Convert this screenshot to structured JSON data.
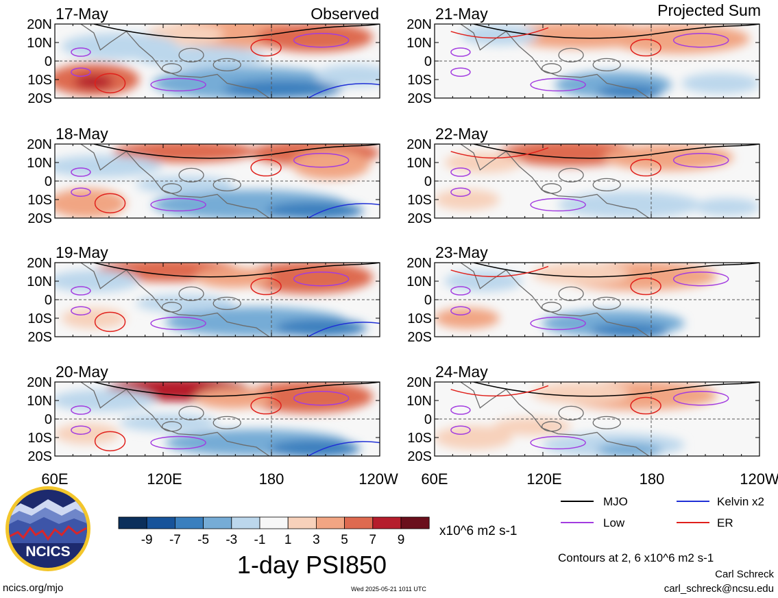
{
  "headers": {
    "left": "Observed",
    "right": "Projected Sum"
  },
  "chart_data": {
    "type": "heatmap",
    "title": "1-day PSI850",
    "units": "x10^6 m2 s-1",
    "lat_labels": [
      "20N",
      "10N",
      "0",
      "10S",
      "20S"
    ],
    "lon_labels": [
      "60E",
      "120E",
      "180",
      "120W"
    ],
    "lat_range": [
      -20,
      20
    ],
    "lon_range": [
      60,
      240
    ],
    "colorbar": {
      "labels": [
        "-9",
        "-7",
        "-5",
        "-3",
        "-1",
        "1",
        "3",
        "5",
        "7",
        "9"
      ],
      "colors": [
        "#0b2f5b",
        "#17539a",
        "#3a7fbe",
        "#76acd6",
        "#bcd7ec",
        "#f7f7f7",
        "#f7d1bb",
        "#f1a583",
        "#de6a50",
        "#b51d2c",
        "#6a0f1c"
      ]
    },
    "panels": [
      {
        "date": "17-May",
        "group": "Observed"
      },
      {
        "date": "18-May",
        "group": "Observed"
      },
      {
        "date": "19-May",
        "group": "Observed"
      },
      {
        "date": "20-May",
        "group": "Observed"
      },
      {
        "date": "21-May",
        "group": "Projected Sum"
      },
      {
        "date": "22-May",
        "group": "Projected Sum"
      },
      {
        "date": "23-May",
        "group": "Projected Sum"
      },
      {
        "date": "24-May",
        "group": "Projected Sum"
      }
    ],
    "legend": [
      {
        "name": "MJO",
        "color": "#000000"
      },
      {
        "name": "Kelvin x2",
        "color": "#1f2fd6"
      },
      {
        "name": "Low",
        "color": "#a23be0"
      },
      {
        "name": "ER",
        "color": "#e0201b"
      }
    ],
    "contour_note": "Contours at 2, 6 x10^6 m2 s-1",
    "grid": true
  },
  "logo": {
    "text": "NCICS",
    "colors": {
      "ring": "#f3c62b",
      "navy": "#1d2a6e",
      "red": "#d7262b"
    }
  },
  "footer": {
    "left": "ncics.org/mjo",
    "center": "Wed 2025-05-21 1011 UTC",
    "author": "Carl Schreck",
    "email": "carl_schreck@ncsu.edu"
  }
}
